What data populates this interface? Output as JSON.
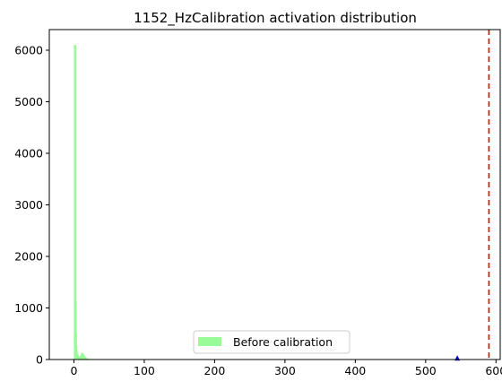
{
  "chart_data": {
    "type": "bar",
    "title": "1152_HzCalibration activation distribution",
    "xlabel": "",
    "ylabel": "",
    "xlim": [
      -35,
      606
    ],
    "ylim": [
      0,
      6400
    ],
    "x_ticks": [
      0,
      100,
      200,
      300,
      400,
      500,
      600
    ],
    "y_ticks": [
      0,
      1000,
      2000,
      3000,
      4000,
      5000,
      6000
    ],
    "grid": false,
    "legend_position": "lower-center",
    "series": [
      {
        "name": "Before calibration",
        "color": "#98fb98",
        "bins": [
          {
            "x": 0,
            "value": 6100
          },
          {
            "x": 0.5,
            "value": 1130
          },
          {
            "x": 1.0,
            "value": 520
          },
          {
            "x": 1.5,
            "value": 260
          },
          {
            "x": 2.0,
            "value": 170
          },
          {
            "x": 3.0,
            "value": 110
          },
          {
            "x": 4.0,
            "value": 80
          },
          {
            "x": 6.0,
            "value": 55
          },
          {
            "x": 8.0,
            "value": 75
          },
          {
            "x": 10.0,
            "value": 130
          },
          {
            "x": 12.0,
            "value": 100
          },
          {
            "x": 14.0,
            "value": 60
          },
          {
            "x": 16.0,
            "value": 30
          },
          {
            "x": 18.0,
            "value": 15
          }
        ]
      }
    ],
    "marker": {
      "x": 545,
      "y": 30,
      "color": "#0000cc"
    },
    "threshold_line": {
      "x": 590,
      "color": "#dd0000",
      "style": "dashed"
    }
  }
}
